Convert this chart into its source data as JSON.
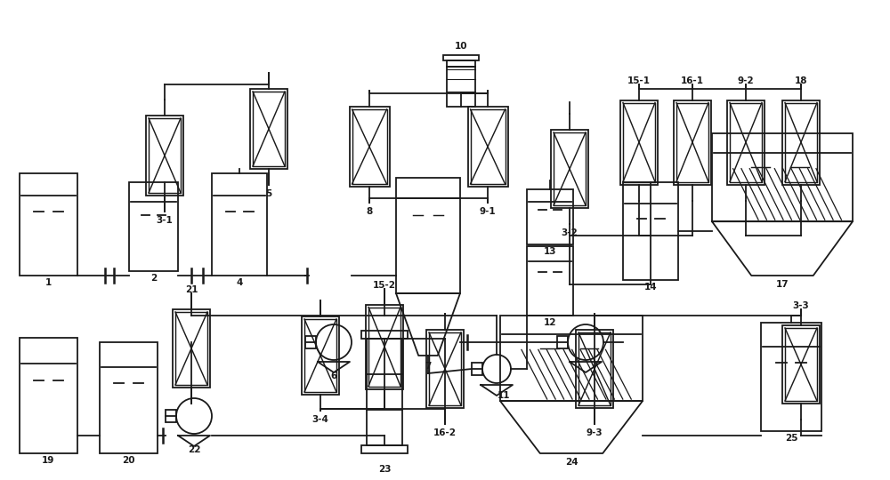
{
  "figsize": [
    10.0,
    5.4
  ],
  "dpi": 100,
  "lw": 1.3,
  "lc": "#1a1a1a",
  "fs": 7.5,
  "xlim": [
    0,
    1000
  ],
  "ylim": [
    0,
    540
  ]
}
